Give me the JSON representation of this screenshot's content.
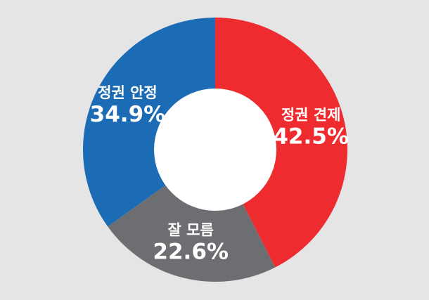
{
  "chart_data": {
    "type": "pie",
    "variant": "donut",
    "title": "",
    "slices": [
      {
        "label": "정권 견제",
        "value": 42.5,
        "value_label": "42.5%",
        "color": "#ee2b2e"
      },
      {
        "label": "잘 모름",
        "value": 22.6,
        "value_label": "22.6%",
        "color": "#6d6e71"
      },
      {
        "label": "정권 안정",
        "value": 34.9,
        "value_label": "34.9%",
        "color": "#1b6bb5"
      }
    ],
    "start_angle": "12 o'clock",
    "direction": "clockwise",
    "legend": "none (labels on slices)",
    "background": "#e5e5e6",
    "hole_color": "#ffffff"
  }
}
